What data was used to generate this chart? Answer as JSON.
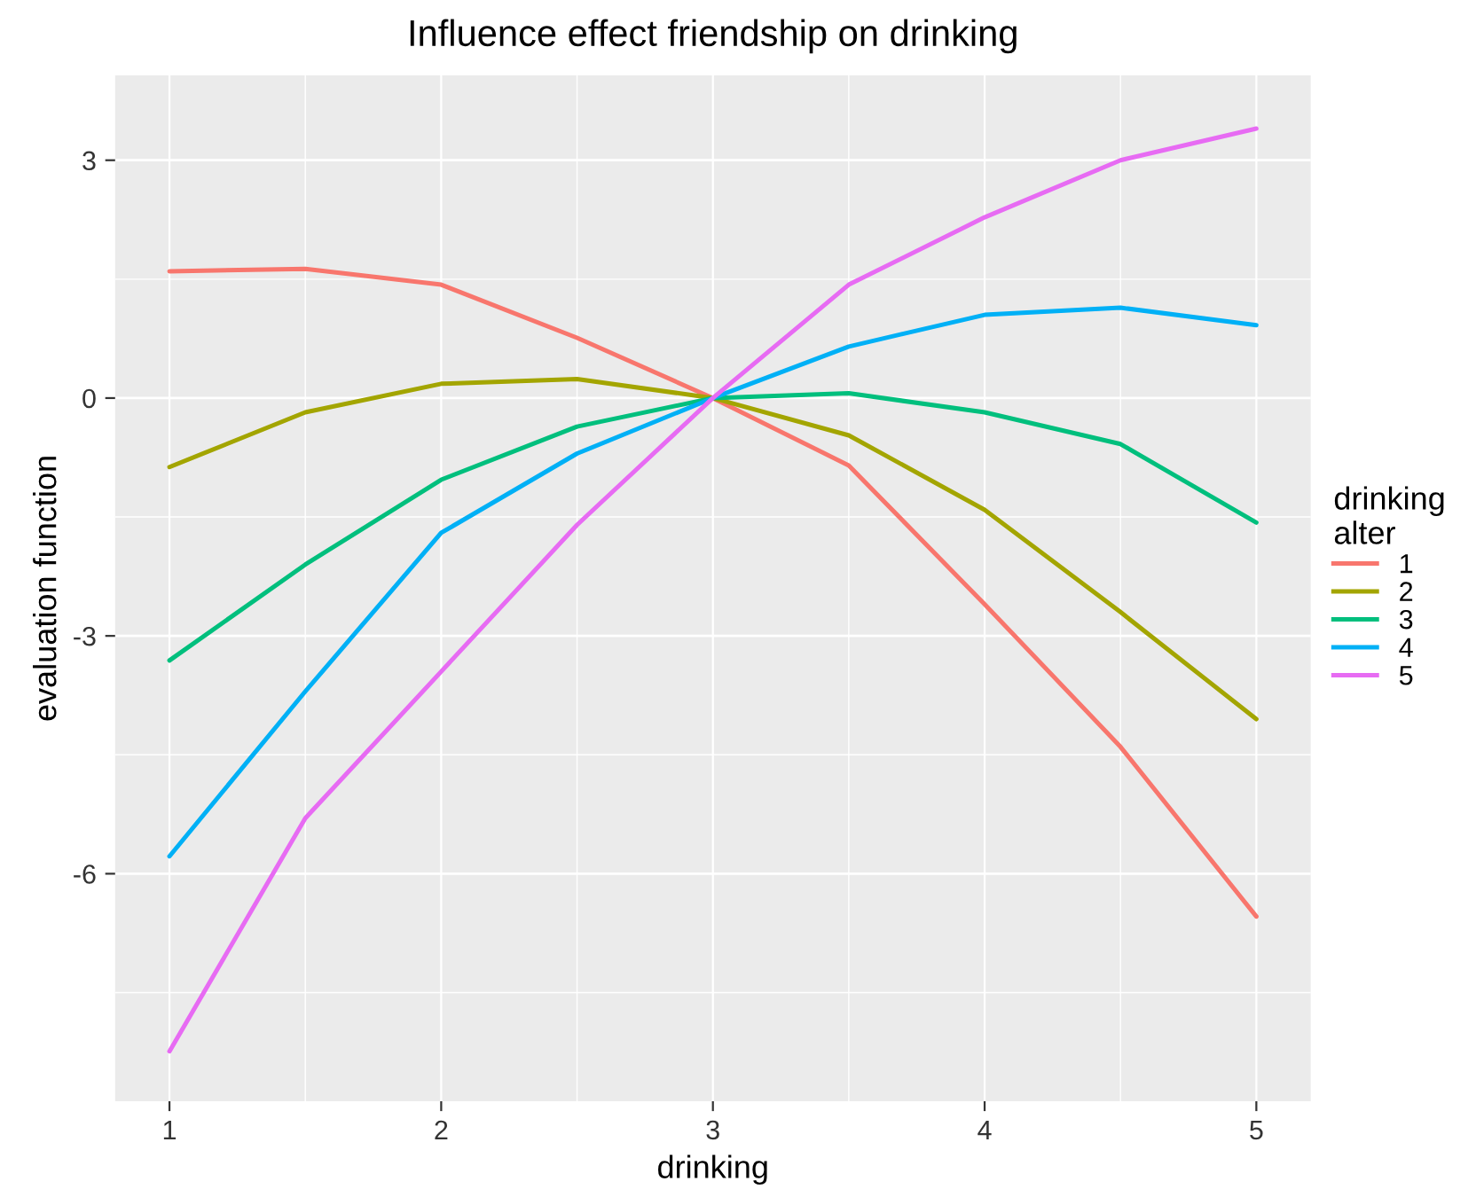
{
  "chart_data": {
    "type": "line",
    "title": "Influence effect friendship on drinking",
    "xlabel": "drinking",
    "ylabel": "evaluation function",
    "legend_title": "drinking\nalter",
    "legend": "right",
    "grid": true,
    "x": [
      1,
      1.5,
      2,
      2.5,
      3,
      3.5,
      4,
      4.5,
      5
    ],
    "xlim": [
      0.8,
      5.2
    ],
    "xticks": [
      1,
      2,
      3,
      4,
      5
    ],
    "ylim": [
      -8.87,
      4.07
    ],
    "yticks": [
      {
        "value": 3,
        "label": "3"
      },
      {
        "value": 0,
        "label": "0"
      },
      {
        "value": -3,
        "label": "-3"
      },
      {
        "value": -6,
        "label": "-6"
      }
    ],
    "series": [
      {
        "name": "1",
        "color": "#F8766D",
        "values": [
          1.6,
          1.63,
          1.43,
          0.76,
          0,
          -0.85,
          -2.6,
          -4.4,
          -6.54
        ]
      },
      {
        "name": "2",
        "color": "#A3A500",
        "values": [
          -0.87,
          -0.18,
          0.18,
          0.24,
          0,
          -0.47,
          -1.41,
          -2.7,
          -4.05
        ]
      },
      {
        "name": "3",
        "color": "#00BF7D",
        "values": [
          -3.31,
          -2.1,
          -1.03,
          -0.36,
          0,
          0.06,
          -0.18,
          -0.58,
          -1.57
        ]
      },
      {
        "name": "4",
        "color": "#00B0F6",
        "values": [
          -5.78,
          -3.7,
          -1.7,
          -0.7,
          0,
          0.65,
          1.05,
          1.14,
          0.92
        ]
      },
      {
        "name": "5",
        "color": "#E76BF3",
        "values": [
          -8.24,
          -5.3,
          -3.45,
          -1.6,
          0,
          1.43,
          2.28,
          3.0,
          3.4
        ]
      }
    ]
  }
}
